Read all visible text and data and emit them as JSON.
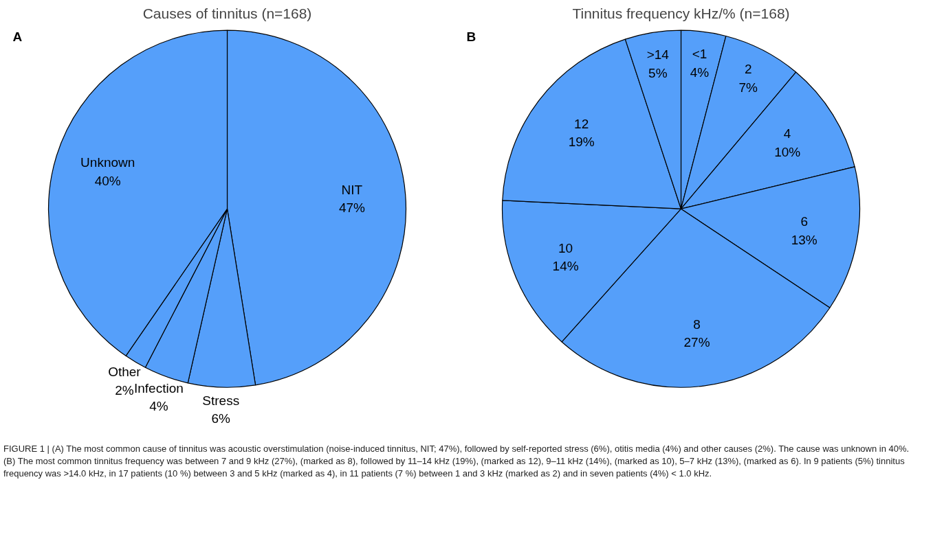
{
  "chart_data": [
    {
      "type": "pie",
      "title": "Causes of tinnitus (n=168)",
      "annotations": [
        "A"
      ],
      "categories": [
        "NIT",
        "Stress",
        "Infection",
        "Other",
        "Unknown"
      ],
      "values": [
        47,
        6,
        4,
        2,
        40
      ],
      "value_labels": [
        "47%",
        "6%",
        "4%",
        "2%",
        "40%"
      ],
      "colors": [
        "#559ffa",
        "#559ffa",
        "#559ffa",
        "#559ffa",
        "#559ffa"
      ]
    },
    {
      "type": "pie",
      "title": "Tinnitus frequency kHz/% (n=168)",
      "annotations": [
        "B",
        "FIGURE 1 | (A) The most common cause of tinnitus was acoustic overstimulation (noise-induced tinnitus, NIT; 47%), followed by self-reported stress (6%), otitis media (4%) and other causes (2%). The cause was unknown in 40%. (B) The most common tinnitus frequency was between 7 and 9 kHz (27%), (marked as 8), followed by 11–14 kHz (19%), (marked as 12), 9–11 kHz (14%), (marked as 10), 5–7 kHz (13%), (marked as 6). In 9 patients (5%) tinnitus frequency was >14.0 kHz, in 17 patients (10 %) between 3 and 5 kHz (marked as 4), in 11 patients (7 %) between 1 and 3 kHz (marked as 2) and in seven patients (4%) < 1.0 kHz."
      ],
      "categories": [
        "<1",
        "2",
        "4",
        "6",
        "8",
        "10",
        "12",
        ">14"
      ],
      "values": [
        4,
        7,
        10,
        13,
        27,
        14,
        19,
        5
      ],
      "value_labels": [
        "4%",
        "7%",
        "10%",
        "13%",
        "27%",
        "14%",
        "19%",
        "5%"
      ],
      "colors": [
        "#559ffa",
        "#559ffa",
        "#559ffa",
        "#559ffa",
        "#559ffa",
        "#559ffa",
        "#559ffa",
        "#559ffa"
      ]
    }
  ]
}
